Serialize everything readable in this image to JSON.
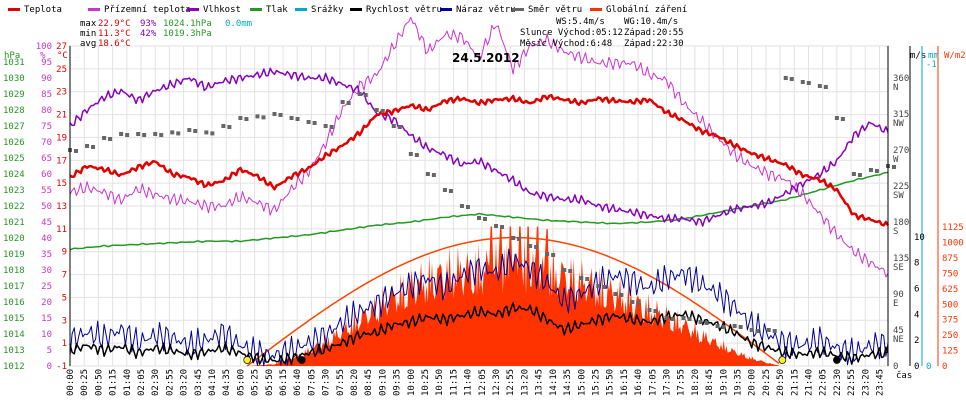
{
  "chart_data": {
    "type": "line",
    "title": "24.5.2012",
    "xlabel": "čas",
    "legend": [
      {
        "name": "Teplota",
        "color": "#e00000"
      },
      {
        "name": "Přízemní teplota",
        "color": "#cc33cc"
      },
      {
        "name": "Vlhkost",
        "color": "#8800bb"
      },
      {
        "name": "Tlak",
        "color": "#229922"
      },
      {
        "name": "Srážky",
        "color": "#00aacc"
      },
      {
        "name": "Rychlost větru",
        "color": "#000000"
      },
      {
        "name": "Náraz větru",
        "color": "#000099"
      },
      {
        "name": "Směr větru",
        "color": "#666666"
      },
      {
        "name": "Globální záření",
        "color": "#ff3300"
      }
    ],
    "stats": {
      "max": {
        "label": "max",
        "temp": "22.9°C",
        "hum": "93%",
        "press": "1024.1hPa",
        "rain": "0.0mm"
      },
      "min": {
        "label": "min",
        "temp": "11.3°C",
        "hum": "42%",
        "press": "1019.3hPa"
      },
      "avg": {
        "label": "avg",
        "temp": "18.6°C"
      }
    },
    "info": {
      "ws": "WS:5.4m/s",
      "wg": "WG:10.4m/s",
      "sun": "Slunce Východ:05:12",
      "sun_set": "Západ:20:55",
      "moon": "Měsíc Východ:6:48",
      "moon_set": "Západ:22:30"
    },
    "axis_units": {
      "hpa": "hPa",
      "pct": "%",
      "degc": "°C",
      "ms": "m/s",
      "mm": "mm",
      "wm2": "W/m2"
    },
    "hpa_ticks": [
      1012,
      1013,
      1014,
      1015,
      1016,
      1017,
      1018,
      1019,
      1020,
      1021,
      1022,
      1023,
      1024,
      1025,
      1026,
      1027,
      1028,
      1029,
      1030,
      1031
    ],
    "pct_ticks": [
      0,
      5,
      10,
      15,
      20,
      25,
      30,
      35,
      40,
      45,
      50,
      55,
      60,
      65,
      70,
      75,
      80,
      85,
      90,
      95,
      100
    ],
    "degc_ticks": [
      -1,
      1,
      3,
      5,
      7,
      9,
      11,
      13,
      15,
      17,
      19,
      21,
      23,
      25,
      27
    ],
    "dir_ticks": [
      "360\nN",
      "315\nNW",
      "270\nW",
      "225\nSW",
      "180\nS",
      "135\nSE",
      "90\nE",
      "45\nNE",
      "0"
    ],
    "ms_ticks": [
      0,
      2,
      4,
      6,
      8,
      10
    ],
    "mm_ticks": [
      "-1",
      "0"
    ],
    "wm2_ticks": [
      0,
      125,
      250,
      375,
      500,
      625,
      750,
      875,
      1000,
      1125
    ],
    "time_labels": [
      "00:00",
      "00:25",
      "00:50",
      "01:15",
      "01:40",
      "02:05",
      "02:30",
      "02:55",
      "03:20",
      "03:45",
      "04:10",
      "04:35",
      "05:00",
      "05:25",
      "05:50",
      "06:15",
      "06:40",
      "07:05",
      "07:30",
      "07:55",
      "08:20",
      "08:45",
      "09:10",
      "09:35",
      "10:00",
      "10:25",
      "10:50",
      "11:15",
      "11:40",
      "12:05",
      "12:30",
      "12:55",
      "13:20",
      "13:45",
      "14:10",
      "14:35",
      "15:00",
      "15:25",
      "15:50",
      "16:15",
      "16:40",
      "17:05",
      "17:30",
      "17:55",
      "18:20",
      "18:45",
      "19:10",
      "19:35",
      "20:00",
      "20:25",
      "20:50",
      "21:15",
      "21:40",
      "22:05",
      "22:30",
      "22:55",
      "23:20",
      "23:45"
    ],
    "series": [
      {
        "name": "Teplota",
        "unit": "°C",
        "x_hours": [
          0,
          0.5,
          1,
          1.5,
          2,
          2.5,
          3,
          3.5,
          4,
          4.5,
          5,
          5.5,
          6,
          6.5,
          7,
          7.5,
          8,
          8.5,
          9,
          9.5,
          10,
          10.5,
          11,
          11.5,
          12,
          12.5,
          13,
          13.5,
          14,
          14.5,
          15,
          15.5,
          16,
          16.5,
          17,
          17.5,
          18,
          18.5,
          19,
          19.5,
          20,
          20.5,
          21,
          21.5,
          22,
          22.5,
          23,
          23.5,
          24
        ],
        "values": [
          15.5,
          16.5,
          16.2,
          15.7,
          16.4,
          16.9,
          15.8,
          15.5,
          14.8,
          15.2,
          16.2,
          15.6,
          14.6,
          15.6,
          16.3,
          17.4,
          18.3,
          19.4,
          21.0,
          21.3,
          21.8,
          21.4,
          22.2,
          22.4,
          22.0,
          22.3,
          22.4,
          22.0,
          22.6,
          22.3,
          22.0,
          22.4,
          22.2,
          22.1,
          22.3,
          21.2,
          20.5,
          19.6,
          19.1,
          18.3,
          17.6,
          17.1,
          16.6,
          15.7,
          15.3,
          14.4,
          12.2,
          11.8,
          11.3
        ]
      },
      {
        "name": "Přízemní teplota",
        "unit": "°C",
        "x_hours": [
          0,
          0.5,
          1,
          1.5,
          2,
          2.5,
          3,
          3.5,
          4,
          4.5,
          5,
          5.5,
          6,
          6.5,
          7,
          7.5,
          8,
          8.5,
          9,
          9.5,
          10,
          10.5,
          11,
          11.5,
          12,
          12.5,
          13,
          13.5,
          14,
          14.5,
          15,
          15.5,
          16,
          16.5,
          17,
          17.5,
          18,
          18.5,
          19,
          19.5,
          20,
          20.5,
          21,
          21.5,
          22,
          22.5,
          23,
          23.5,
          24
        ],
        "values": [
          14.2,
          14.6,
          14.2,
          13.5,
          14.5,
          14.0,
          13.6,
          13.4,
          13.0,
          13.0,
          13.8,
          13.3,
          12.6,
          14.5,
          16.0,
          18.5,
          21.5,
          23.5,
          24.5,
          27.0,
          29.5,
          26.5,
          28.0,
          27.8,
          26.0,
          29.0,
          25.0,
          27.0,
          27.5,
          26.5,
          26.0,
          25.5,
          25.5,
          25.5,
          24.5,
          24.0,
          22.0,
          20.5,
          19.0,
          17.5,
          16.5,
          15.8,
          15.3,
          14.0,
          12.3,
          10.5,
          9.0,
          8.0,
          7.1
        ]
      },
      {
        "name": "Vlhkost",
        "unit": "%",
        "x_hours": [
          0,
          0.5,
          1,
          1.5,
          2,
          2.5,
          3,
          3.5,
          4,
          4.5,
          5,
          5.5,
          6,
          6.5,
          7,
          7.5,
          8,
          8.5,
          9,
          9.5,
          10,
          10.5,
          11,
          11.5,
          12,
          12.5,
          13,
          13.5,
          14,
          14.5,
          15,
          15.5,
          16,
          16.5,
          17,
          17.5,
          18,
          18.5,
          19,
          19.5,
          20,
          20.5,
          21,
          21.5,
          22,
          22.5,
          23,
          23.5,
          24
        ],
        "values": [
          75,
          80,
          84,
          86,
          83,
          86,
          88,
          90,
          87,
          89,
          90,
          91,
          92,
          91,
          90,
          90,
          88,
          86,
          79,
          77,
          72,
          68,
          66,
          63,
          64,
          61,
          58,
          54,
          53,
          52,
          52,
          50,
          49,
          48,
          47,
          46,
          46,
          45,
          47,
          49,
          50,
          51,
          54,
          57,
          60,
          64,
          72,
          76,
          73
        ]
      },
      {
        "name": "Tlak",
        "unit": "hPa",
        "x_hours": [
          0,
          1,
          2,
          3,
          4,
          5,
          6,
          7,
          8,
          9,
          10,
          11,
          12,
          13,
          14,
          15,
          16,
          17,
          18,
          19,
          20,
          21,
          22,
          23,
          24
        ],
        "values": [
          1019.3,
          1019.5,
          1019.6,
          1019.7,
          1019.8,
          1019.8,
          1020.0,
          1020.2,
          1020.5,
          1020.8,
          1021.0,
          1021.3,
          1021.5,
          1021.3,
          1021.1,
          1021.0,
          1020.9,
          1021.0,
          1021.2,
          1021.6,
          1022.0,
          1022.4,
          1023.0,
          1023.6,
          1024.1
        ]
      },
      {
        "name": "Rychlost větru",
        "unit": "m/s",
        "x_hours": [
          0,
          0.5,
          1,
          1.5,
          2,
          2.5,
          3,
          3.5,
          4,
          4.5,
          5,
          5.5,
          6,
          6.5,
          7,
          7.5,
          8,
          8.5,
          9,
          9.5,
          10,
          10.5,
          11,
          11.5,
          12,
          12.5,
          13,
          13.5,
          14,
          14.5,
          15,
          15.5,
          16,
          16.5,
          17,
          17.5,
          18,
          18.5,
          19,
          19.5,
          20,
          20.5,
          21,
          21.5,
          22,
          22.5,
          23,
          23.5,
          24
        ],
        "values": [
          1.2,
          1.6,
          1.2,
          1.5,
          1.0,
          1.4,
          1.2,
          0.9,
          1.1,
          1.4,
          1.0,
          0.6,
          0.4,
          0.6,
          1.0,
          1.3,
          1.8,
          2.4,
          2.6,
          3.2,
          3.4,
          3.8,
          3.6,
          3.9,
          4.2,
          4.0,
          4.5,
          4.4,
          3.6,
          2.8,
          3.2,
          3.6,
          3.9,
          3.6,
          3.4,
          3.8,
          4.0,
          3.6,
          3.2,
          2.6,
          1.8,
          1.4,
          1.0,
          0.9,
          1.1,
          0.8,
          0.6,
          0.9,
          1.0
        ]
      },
      {
        "name": "Náraz větru",
        "unit": "m/s",
        "x_hours": [
          0,
          0.5,
          1,
          1.5,
          2,
          2.5,
          3,
          3.5,
          4,
          4.5,
          5,
          5.5,
          6,
          6.5,
          7,
          7.5,
          8,
          8.5,
          9,
          9.5,
          10,
          10.5,
          11,
          11.5,
          12,
          12.5,
          13,
          13.5,
          14,
          14.5,
          15,
          15.5,
          16,
          16.5,
          17,
          17.5,
          18,
          18.5,
          19,
          19.5,
          20,
          20.5,
          21,
          21.5,
          22,
          22.5,
          23,
          23.5,
          24
        ],
        "values": [
          2.0,
          2.6,
          2.2,
          2.8,
          1.8,
          2.4,
          2.2,
          1.6,
          2.0,
          2.6,
          1.6,
          1.0,
          0.8,
          1.2,
          1.8,
          2.4,
          3.4,
          4.2,
          4.8,
          5.6,
          6.2,
          6.8,
          6.0,
          7.0,
          7.6,
          7.2,
          8.2,
          7.6,
          6.4,
          5.0,
          5.6,
          6.4,
          7.0,
          6.6,
          6.0,
          6.8,
          7.2,
          6.4,
          5.6,
          4.6,
          3.2,
          2.4,
          1.8,
          1.6,
          2.0,
          1.4,
          1.0,
          1.6,
          1.8
        ]
      },
      {
        "name": "Směr větru",
        "unit": "°",
        "x_hours": [
          0,
          0.5,
          1,
          1.5,
          2,
          2.5,
          3,
          3.5,
          4,
          4.5,
          5,
          5.5,
          6,
          6.5,
          7,
          7.5,
          8,
          8.5,
          9,
          9.5,
          10,
          10.5,
          11,
          11.5,
          12,
          12.5,
          13,
          13.5,
          14,
          14.5,
          15,
          15.5,
          16,
          16.5,
          17,
          17.5,
          18,
          18.5,
          19,
          19.5,
          20,
          20.5,
          21,
          21.5,
          22,
          22.5,
          23,
          23.5,
          24
        ],
        "values": [
          270,
          275,
          285,
          290,
          290,
          290,
          292,
          295,
          292,
          300,
          310,
          312,
          315,
          310,
          305,
          300,
          330,
          340,
          320,
          300,
          265,
          240,
          220,
          200,
          185,
          175,
          160,
          150,
          140,
          120,
          110,
          100,
          90,
          80,
          70,
          60,
          60,
          55,
          50,
          50,
          45,
          45,
          360,
          355,
          350,
          310,
          240,
          245,
          250
        ]
      },
      {
        "name": "Globální záření",
        "unit": "W/m2",
        "x_hours": [
          5.2,
          6,
          6.5,
          7,
          7.5,
          8,
          8.5,
          9,
          9.5,
          10,
          10.5,
          11,
          11.5,
          12,
          12.5,
          13,
          13.5,
          14,
          14.5,
          15,
          15.5,
          16,
          16.5,
          17,
          17.5,
          18,
          18.5,
          19,
          19.5,
          20,
          20.5,
          20.9
        ],
        "values": [
          0,
          20,
          80,
          160,
          260,
          370,
          500,
          620,
          740,
          830,
          920,
          980,
          1010,
          1020,
          1030,
          1040,
          1020,
          990,
          960,
          900,
          830,
          760,
          690,
          600,
          520,
          440,
          330,
          240,
          150,
          80,
          30,
          0
        ]
      }
    ]
  }
}
